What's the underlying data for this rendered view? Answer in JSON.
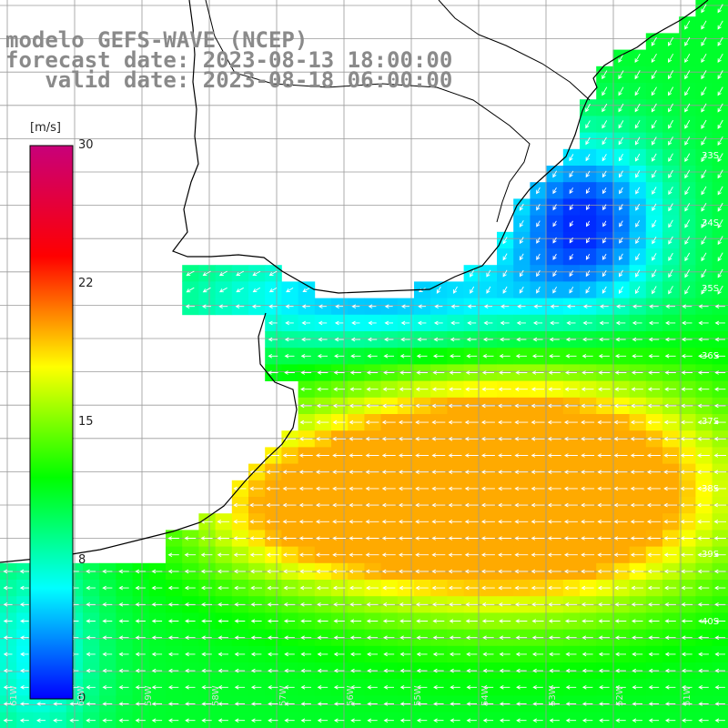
{
  "title": {
    "line1": "modelo GEFS-WAVE (NCEP)",
    "line2": "forecast date: 2023-08-13 18:00:00",
    "line3": "   valid date: 2023-08-18 06:00:00"
  },
  "colorbar": {
    "unit": "[m/s]",
    "min": 0,
    "max": 30,
    "ticks": [
      "30",
      "22",
      "15",
      "8",
      "0"
    ],
    "stops": [
      "#0000ff",
      "#00ffff",
      "#00ff00",
      "#ffff00",
      "#ff0000",
      "#c8007a"
    ]
  },
  "lat_labels": [
    "33S",
    "34S",
    "35S",
    "36S",
    "37S",
    "38S",
    "39S",
    "40S"
  ],
  "lon_labels": [
    "61W",
    "60W",
    "59W",
    "58W",
    "57W",
    "56W",
    "55W",
    "54W",
    "53W",
    "52W",
    "51W"
  ],
  "colors": {
    "coast": "#000000",
    "grid": "#9a9a9a",
    "arrows": "#ffffff",
    "land": "#ffffff"
  }
}
